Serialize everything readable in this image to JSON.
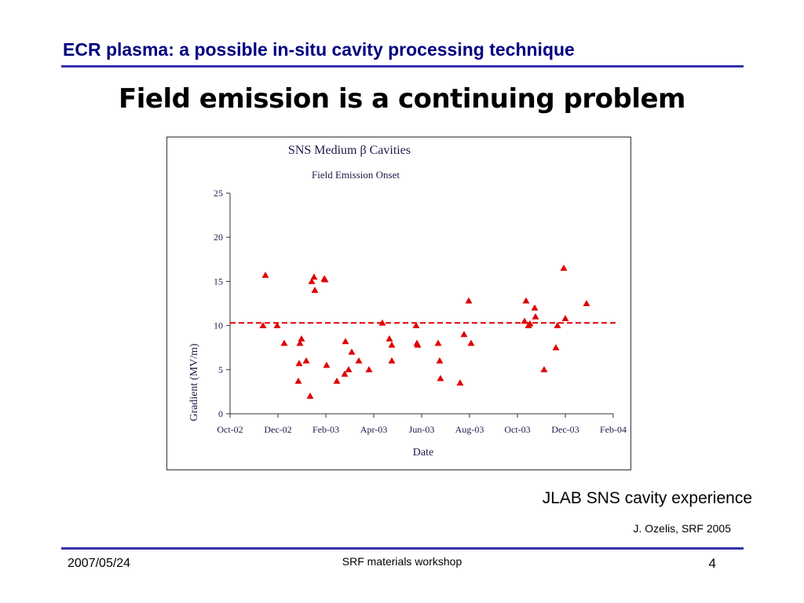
{
  "slide": {
    "header": "ECR plasma: a possible in-situ cavity processing technique",
    "title": "Field emission is a continuing problem",
    "caption": "JLAB SNS cavity experience",
    "credit": "J. Ozelis, SRF 2005",
    "footer_date": "2007/05/24",
    "footer_center": "SRF materials workshop",
    "page_number": "4"
  },
  "chart_data": {
    "type": "scatter",
    "title": "SNS Medium β Cavities",
    "subtitle": "Field Emission Onset",
    "xlabel": "Date",
    "ylabel": "Gradient (MV/m)",
    "ylim": [
      0,
      25
    ],
    "yticks": [
      "0",
      "5",
      "10",
      "15",
      "20",
      "25"
    ],
    "xticks": [
      "Oct-02",
      "Dec-02",
      "Feb-03",
      "Apr-03",
      "Jun-03",
      "Aug-03",
      "Oct-03",
      "Dec-03",
      "Feb-04"
    ],
    "grid": false,
    "marker": "triangle",
    "marker_color": "#e00000",
    "reference_line": {
      "y": 10.3,
      "style": "dashed",
      "color": "#e00000"
    },
    "points": [
      {
        "x": "2002-11-12",
        "y": 10.0
      },
      {
        "x": "2002-11-15",
        "y": 15.7
      },
      {
        "x": "2002-11-30",
        "y": 10.0
      },
      {
        "x": "2002-12-09",
        "y": 8.0
      },
      {
        "x": "2002-12-27",
        "y": 3.7
      },
      {
        "x": "2002-12-28",
        "y": 5.7
      },
      {
        "x": "2002-12-29",
        "y": 8.0
      },
      {
        "x": "2002-12-31",
        "y": 8.5
      },
      {
        "x": "2003-01-06",
        "y": 6.0
      },
      {
        "x": "2003-01-11",
        "y": 2.0
      },
      {
        "x": "2003-01-13",
        "y": 15.0
      },
      {
        "x": "2003-01-16",
        "y": 15.5
      },
      {
        "x": "2003-01-17",
        "y": 14.0
      },
      {
        "x": "2003-01-29",
        "y": 15.3
      },
      {
        "x": "2003-01-30",
        "y": 15.2
      },
      {
        "x": "2003-02-01",
        "y": 5.5
      },
      {
        "x": "2003-02-14",
        "y": 3.7
      },
      {
        "x": "2003-02-24",
        "y": 4.5
      },
      {
        "x": "2003-02-25",
        "y": 8.2
      },
      {
        "x": "2003-03-01",
        "y": 5.0
      },
      {
        "x": "2003-03-05",
        "y": 7.0
      },
      {
        "x": "2003-03-14",
        "y": 6.0
      },
      {
        "x": "2003-03-27",
        "y": 5.0
      },
      {
        "x": "2003-04-13",
        "y": 10.3
      },
      {
        "x": "2003-04-22",
        "y": 8.5
      },
      {
        "x": "2003-04-25",
        "y": 7.8
      },
      {
        "x": "2003-04-25",
        "y": 6.0
      },
      {
        "x": "2003-05-26",
        "y": 10.0
      },
      {
        "x": "2003-05-27",
        "y": 8.0
      },
      {
        "x": "2003-05-28",
        "y": 7.8
      },
      {
        "x": "2003-06-23",
        "y": 8.0
      },
      {
        "x": "2003-06-25",
        "y": 6.0
      },
      {
        "x": "2003-06-26",
        "y": 4.0
      },
      {
        "x": "2003-07-21",
        "y": 3.5
      },
      {
        "x": "2003-07-26",
        "y": 9.0
      },
      {
        "x": "2003-08-01",
        "y": 12.8
      },
      {
        "x": "2003-08-04",
        "y": 8.0
      },
      {
        "x": "2003-10-11",
        "y": 10.5
      },
      {
        "x": "2003-10-13",
        "y": 12.8
      },
      {
        "x": "2003-10-16",
        "y": 10.0
      },
      {
        "x": "2003-10-18",
        "y": 10.2
      },
      {
        "x": "2003-10-24",
        "y": 12.0
      },
      {
        "x": "2003-10-25",
        "y": 11.0
      },
      {
        "x": "2003-11-05",
        "y": 5.0
      },
      {
        "x": "2003-11-20",
        "y": 7.5
      },
      {
        "x": "2003-11-22",
        "y": 10.0
      },
      {
        "x": "2003-11-30",
        "y": 16.5
      },
      {
        "x": "2003-12-02",
        "y": 10.8
      },
      {
        "x": "2003-12-29",
        "y": 12.5
      }
    ]
  }
}
